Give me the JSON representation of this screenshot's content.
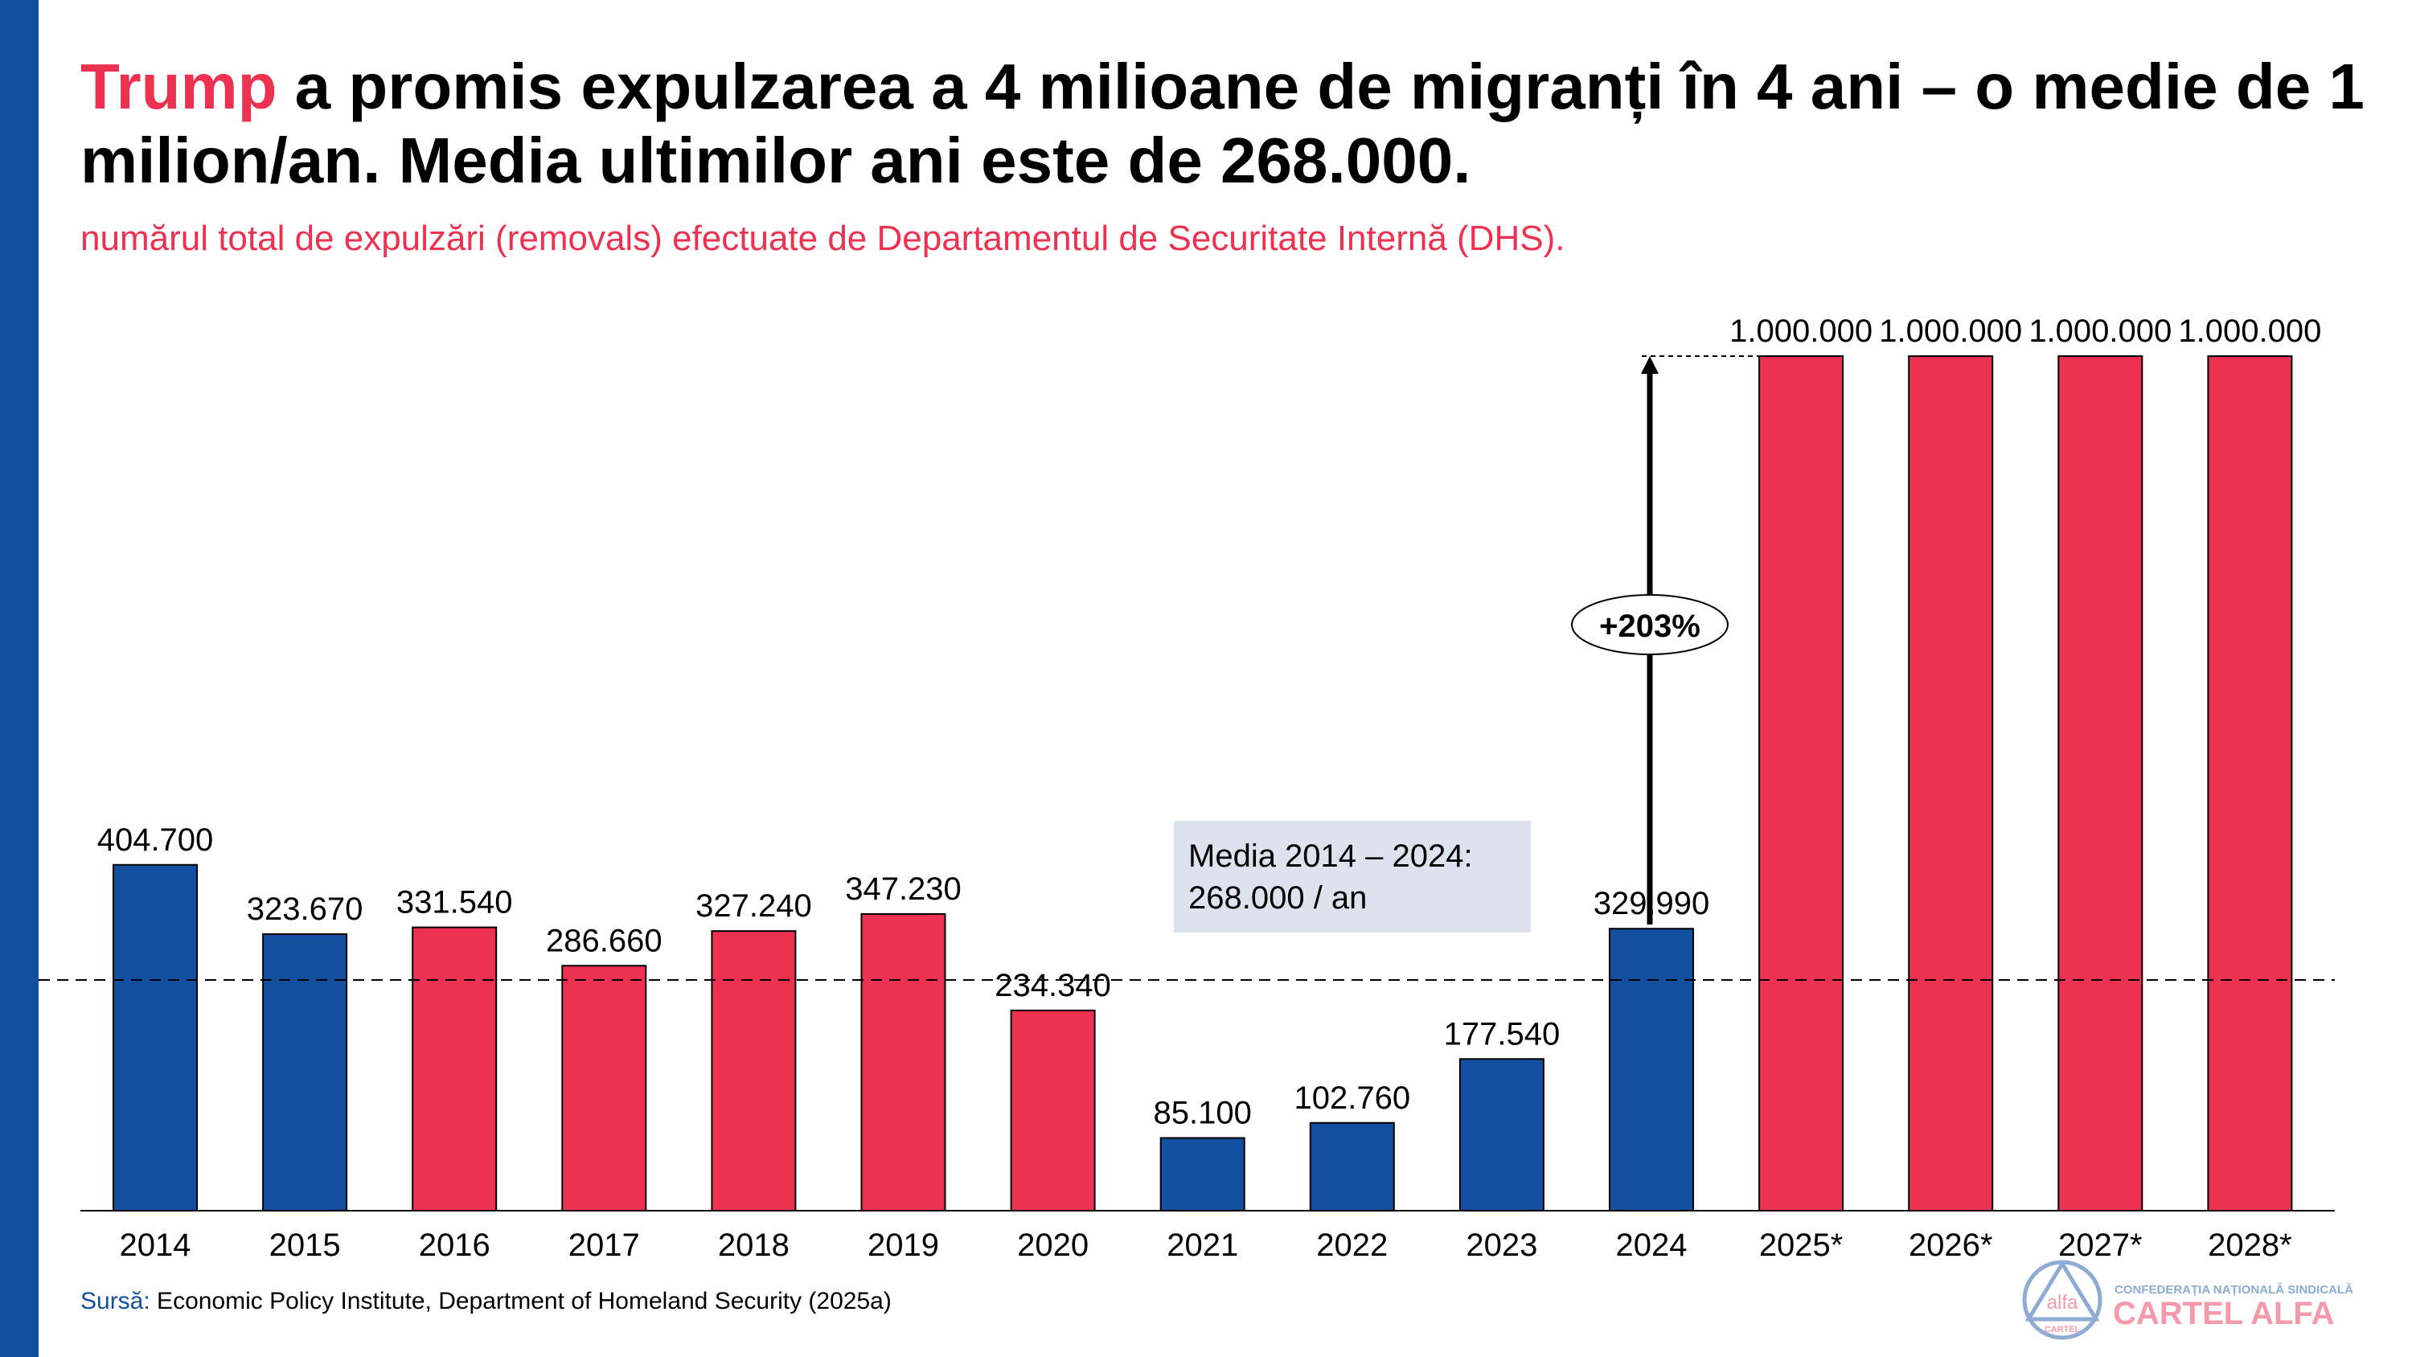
{
  "title": {
    "highlight": "Trump",
    "rest": " a promis expulzarea a 4 milioane de migranți în 4 ani – o medie de 1 milion/an. Media ultimilor ani este de 268.000."
  },
  "subtitle": "numărul total de expulzări (removals) efectuate de Departamentul de Securitate Internă (DHS).",
  "average_box": {
    "line1": "Media 2014 – 2024:",
    "line2": "268.000 / an"
  },
  "growth_label": "+203%",
  "source": {
    "label": "Sursă:",
    "text": " Economic Policy Institute, Department of Homeland Security (2025a)"
  },
  "logo": {
    "top_text": "CONFEDERAȚIA NAȚIONALĂ SINDICALĂ",
    "name": "CARTEL ALFA",
    "emblem_word": "alfa",
    "emblem_sub": "CARTEL"
  },
  "colors": {
    "blue": "#134f9f",
    "red": "#ec3250",
    "avg_box": "#dce3ee"
  },
  "chart_data": {
    "type": "bar",
    "title": "numărul total de expulzări (removals) efectuate de DHS",
    "xlabel": "",
    "ylabel": "",
    "ylim": [
      0,
      1000000
    ],
    "grid": false,
    "average_line": 268000,
    "categories": [
      "2014",
      "2015",
      "2016",
      "2017",
      "2018",
      "2019",
      "2020",
      "2021",
      "2022",
      "2023",
      "2024",
      "2025*",
      "2026*",
      "2027*",
      "2028*"
    ],
    "values": [
      404700,
      323670,
      331540,
      286660,
      327240,
      347230,
      234340,
      85100,
      102760,
      177540,
      329990,
      1000000,
      1000000,
      1000000,
      1000000
    ],
    "value_labels": [
      "404.700",
      "323.670",
      "331.540",
      "286.660",
      "327.240",
      "347.230",
      "234.340",
      "85.100",
      "102.760",
      "177.540",
      "329.990",
      "1.000.000",
      "1.000.000",
      "1.000.000",
      "1.000.000"
    ],
    "bar_colors": [
      "blue",
      "blue",
      "red",
      "red",
      "red",
      "red",
      "red",
      "blue",
      "blue",
      "blue",
      "blue",
      "red",
      "red",
      "red",
      "red"
    ]
  }
}
